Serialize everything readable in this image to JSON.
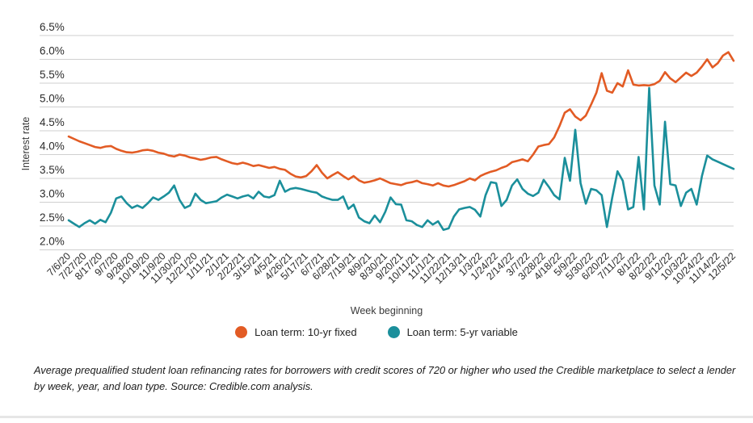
{
  "colors": {
    "background": "#ffffff",
    "grid": "#cfcfcf",
    "axis_text": "#2b2b2b",
    "axis_title": "#3a3a3a",
    "orange": "#e25b24",
    "teal": "#1b8f9b",
    "divider": "#e6e6e6"
  },
  "legend": {
    "items": [
      {
        "label": "Loan term: 10-yr fixed",
        "color": "#e25b24"
      },
      {
        "label": "Loan term: 5-yr variable",
        "color": "#1b8f9b"
      }
    ]
  },
  "caption": "Average prequalified student loan refinancing rates for borrowers with credit scores of 720 or higher who used the Credible marketplace to select a lender by week, year, and loan type. Source: Credible.com analysis.",
  "chart_data": {
    "type": "line",
    "xlabel": "Week beginning",
    "ylabel": "Interest rate",
    "ylim": [
      2.0,
      6.5
    ],
    "ytick_step": 0.5,
    "ytick_format": "percent",
    "grid": "horizontal",
    "legend_position": "bottom",
    "x_unit": "week",
    "tick_every_weeks": 3,
    "x_tick_labels": [
      "7/6/20",
      "7/27/20",
      "8/17/20",
      "9/7/20",
      "9/28/20",
      "10/19/20",
      "11/9/20",
      "11/30/20",
      "12/21/20",
      "1/11/21",
      "2/1/21",
      "2/22/21",
      "3/15/21",
      "4/5/21",
      "4/26/21",
      "5/17/21",
      "6/7/21",
      "6/28/21",
      "7/19/21",
      "8/9/21",
      "8/30/21",
      "9/20/21",
      "10/11/21",
      "11/1/21",
      "11/22/21",
      "12/13/21",
      "1/3/22",
      "1/24/22",
      "2/14/22",
      "3/7/22",
      "3/28/22",
      "4/18/22",
      "5/9/22",
      "5/30/22",
      "6/20/22",
      "7/11/22",
      "8/1/22",
      "8/22/22",
      "9/12/22",
      "10/3/22",
      "10/24/22",
      "11/14/22",
      "12/5/22"
    ],
    "series": [
      {
        "name": "Loan term: 10-yr fixed",
        "color": "#e25b24",
        "values": [
          4.38,
          4.33,
          4.28,
          4.24,
          4.2,
          4.16,
          4.14,
          4.17,
          4.18,
          4.12,
          4.08,
          4.05,
          4.04,
          4.06,
          4.09,
          4.1,
          4.08,
          4.04,
          4.02,
          3.98,
          3.96,
          4.0,
          3.98,
          3.94,
          3.92,
          3.89,
          3.91,
          3.94,
          3.95,
          3.9,
          3.86,
          3.82,
          3.8,
          3.83,
          3.8,
          3.76,
          3.78,
          3.75,
          3.72,
          3.74,
          3.7,
          3.68,
          3.6,
          3.54,
          3.52,
          3.55,
          3.65,
          3.78,
          3.62,
          3.5,
          3.57,
          3.63,
          3.55,
          3.48,
          3.55,
          3.46,
          3.41,
          3.43,
          3.46,
          3.5,
          3.45,
          3.4,
          3.38,
          3.36,
          3.4,
          3.42,
          3.45,
          3.4,
          3.38,
          3.35,
          3.4,
          3.35,
          3.33,
          3.36,
          3.4,
          3.44,
          3.5,
          3.46,
          3.55,
          3.6,
          3.64,
          3.67,
          3.72,
          3.76,
          3.84,
          3.87,
          3.9,
          3.86,
          4.0,
          4.17,
          4.2,
          4.22,
          4.36,
          4.6,
          4.88,
          4.95,
          4.8,
          4.72,
          4.82,
          5.05,
          5.3,
          5.71,
          5.34,
          5.3,
          5.5,
          5.43,
          5.77,
          5.47,
          5.45,
          5.46,
          5.45,
          5.48,
          5.55,
          5.73,
          5.6,
          5.52,
          5.62,
          5.72,
          5.65,
          5.72,
          5.85,
          6.0,
          5.83,
          5.92,
          6.08,
          6.15,
          5.97
        ]
      },
      {
        "name": "Loan term: 5-yr variable",
        "color": "#1b8f9b",
        "values": [
          2.62,
          2.55,
          2.48,
          2.56,
          2.62,
          2.55,
          2.63,
          2.58,
          2.78,
          3.08,
          3.12,
          2.98,
          2.88,
          2.93,
          2.88,
          2.98,
          3.1,
          3.05,
          3.12,
          3.2,
          3.35,
          3.05,
          2.88,
          2.93,
          3.18,
          3.05,
          2.98,
          3.0,
          3.02,
          3.1,
          3.16,
          3.12,
          3.08,
          3.12,
          3.15,
          3.08,
          3.22,
          3.12,
          3.1,
          3.15,
          3.45,
          3.22,
          3.28,
          3.3,
          3.28,
          3.25,
          3.22,
          3.2,
          3.12,
          3.08,
          3.05,
          3.05,
          3.12,
          2.86,
          2.95,
          2.68,
          2.6,
          2.56,
          2.72,
          2.58,
          2.8,
          3.1,
          2.96,
          2.95,
          2.62,
          2.6,
          2.52,
          2.48,
          2.62,
          2.53,
          2.6,
          2.42,
          2.45,
          2.7,
          2.85,
          2.88,
          2.9,
          2.84,
          2.7,
          3.15,
          3.42,
          3.4,
          2.92,
          3.05,
          3.35,
          3.48,
          3.28,
          3.18,
          3.13,
          3.2,
          3.47,
          3.32,
          3.15,
          3.06,
          3.93,
          3.45,
          4.52,
          3.4,
          2.97,
          3.28,
          3.25,
          3.15,
          2.48,
          3.1,
          3.65,
          3.45,
          2.85,
          2.9,
          3.95,
          2.85,
          5.4,
          3.35,
          2.95,
          4.69,
          3.38,
          3.35,
          2.92,
          3.2,
          3.28,
          2.95,
          3.55,
          3.98,
          3.9,
          3.85,
          3.8,
          3.75,
          3.7
        ]
      }
    ]
  }
}
